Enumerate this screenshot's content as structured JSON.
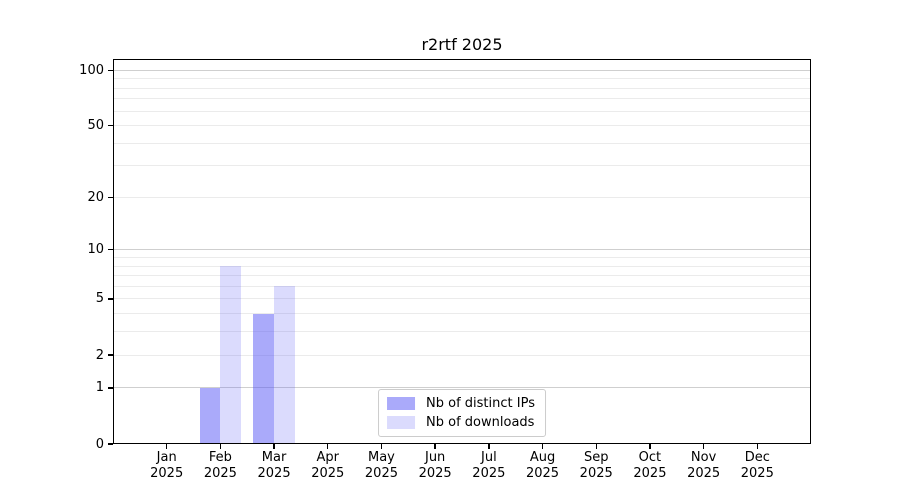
{
  "chart_data": {
    "type": "bar",
    "title": "r2rtf 2025",
    "categories": [
      "Jan 2025",
      "Feb 2025",
      "Mar 2025",
      "Apr 2025",
      "May 2025",
      "Jun 2025",
      "Jul 2025",
      "Aug 2025",
      "Sep 2025",
      "Oct 2025",
      "Nov 2025",
      "Dec 2025"
    ],
    "series": [
      {
        "name": "Nb of distinct IPs",
        "color": "rgba(85,85,245,0.5)",
        "values": [
          0,
          1,
          4,
          0,
          0,
          0,
          0,
          0,
          0,
          0,
          0,
          0
        ]
      },
      {
        "name": "Nb of downloads",
        "color": "rgba(85,85,245,0.21)",
        "values": [
          0,
          8,
          6,
          0,
          0,
          0,
          0,
          0,
          0,
          0,
          0,
          0
        ]
      }
    ],
    "y_axis": {
      "scale": "log1p",
      "ylim": [
        0,
        115
      ],
      "tick_values": [
        0,
        1,
        2,
        5,
        10,
        20,
        50,
        100
      ],
      "major_gridlines": [
        1,
        10,
        100
      ],
      "minor_gridlines": [
        2,
        3,
        4,
        5,
        6,
        7,
        8,
        9,
        20,
        30,
        40,
        50,
        60,
        70,
        80,
        90
      ]
    },
    "x_axis": {
      "tick_label_lines": 2
    },
    "legend": {
      "position": "lower center"
    },
    "grid": true
  }
}
